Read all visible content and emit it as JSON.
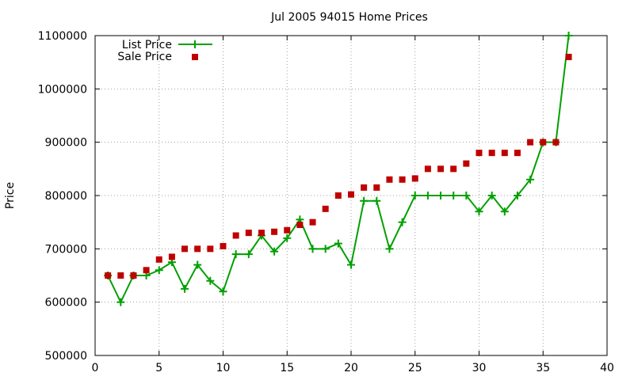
{
  "chart_data": {
    "type": "line",
    "title": "Jul 2005 94015 Home Prices",
    "xlabel": "",
    "ylabel": "Price",
    "xlim": [
      0,
      40
    ],
    "ylim": [
      500000,
      1100000
    ],
    "xticks": [
      0,
      5,
      10,
      15,
      20,
      25,
      30,
      35,
      40
    ],
    "yticks": [
      500000,
      600000,
      700000,
      800000,
      900000,
      1000000,
      1100000
    ],
    "grid": true,
    "legend_position": "top-left",
    "series": [
      {
        "name": "List Price",
        "style": "line-with-plus-markers",
        "color": "#00a000",
        "x": [
          1,
          2,
          3,
          4,
          5,
          6,
          7,
          8,
          9,
          10,
          11,
          12,
          13,
          14,
          15,
          16,
          17,
          18,
          19,
          20,
          21,
          22,
          23,
          24,
          25,
          26,
          27,
          28,
          29,
          30,
          31,
          32,
          33,
          34,
          35,
          36,
          37
        ],
        "y": [
          650000,
          600000,
          650000,
          650000,
          660000,
          675000,
          625000,
          670000,
          640000,
          620000,
          690000,
          690000,
          725000,
          695000,
          720000,
          755000,
          700000,
          700000,
          710000,
          670000,
          790000,
          790000,
          700000,
          750000,
          800000,
          800000,
          800000,
          800000,
          800000,
          770000,
          800000,
          770000,
          800000,
          830000,
          900000,
          900000,
          1100000
        ]
      },
      {
        "name": "Sale Price",
        "style": "square-markers",
        "color": "#c00000",
        "x": [
          1,
          2,
          3,
          4,
          5,
          6,
          7,
          8,
          9,
          10,
          11,
          12,
          13,
          14,
          15,
          16,
          17,
          18,
          19,
          20,
          21,
          22,
          23,
          24,
          25,
          26,
          27,
          28,
          29,
          30,
          31,
          32,
          33,
          34,
          35,
          36,
          37
        ],
        "y": [
          650000,
          650000,
          650000,
          660000,
          680000,
          685000,
          700000,
          700000,
          700000,
          705000,
          725000,
          730000,
          730000,
          732000,
          735000,
          745000,
          750000,
          775000,
          800000,
          802000,
          815000,
          815000,
          830000,
          830000,
          832000,
          850000,
          850000,
          850000,
          860000,
          880000,
          880000,
          880000,
          880000,
          900000,
          900000,
          900000,
          1060000
        ]
      }
    ]
  }
}
